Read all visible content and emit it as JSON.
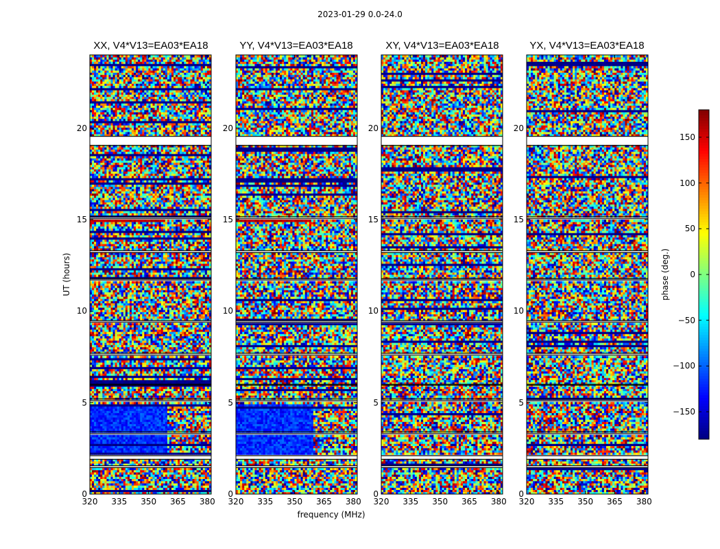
{
  "suptitle": "2023-01-29 0.0-24.0",
  "chart_data": {
    "type": "heatmap",
    "xlabel": "frequency (MHz)",
    "ylabel": "UT (hours)",
    "xlim": [
      320,
      382
    ],
    "ylim": [
      0,
      24
    ],
    "x_ticks": [
      "320",
      "335",
      "350",
      "365",
      "380"
    ],
    "y_ticks": [
      "0",
      "5",
      "10",
      "15",
      "20"
    ],
    "panels": [
      {
        "title": "XX, V4*V13=EA03*EA18",
        "polarization": "XX",
        "low_band_phase_deg": -120,
        "low_band_ut": [
          2.1,
          4.9
        ],
        "low_band_freq_max": 360,
        "band_15h_phase_deg": 160
      },
      {
        "title": "YY, V4*V13=EA03*EA18",
        "polarization": "YY",
        "low_band_phase_deg": -120,
        "low_band_ut": [
          2.1,
          4.9
        ],
        "low_band_freq_max": 360,
        "band_15h_phase_deg": 160
      },
      {
        "title": "XY, V4*V13=EA03*EA18",
        "polarization": "XY",
        "low_band_phase_deg": null,
        "low_band_ut": null,
        "low_band_freq_max": null,
        "band_15h_phase_deg": null
      },
      {
        "title": "YX, V4*V13=EA03*EA18",
        "polarization": "YX",
        "low_band_phase_deg": null,
        "low_band_ut": null,
        "low_band_freq_max": null,
        "band_15h_phase_deg": null
      }
    ],
    "flagged_ut_ranges": [
      [
        19.05,
        19.55
      ],
      [
        15.05,
        15.15
      ],
      [
        13.2,
        13.3
      ],
      [
        11.7,
        11.78
      ],
      [
        9.4,
        9.48
      ],
      [
        7.6,
        7.7
      ],
      [
        5.95,
        6.0
      ],
      [
        5.1,
        5.2
      ],
      [
        3.3,
        3.4
      ],
      [
        1.9,
        2.1
      ],
      [
        1.45,
        1.55
      ]
    ],
    "colorbar": {
      "label": "phase (deg.)",
      "range": [
        -180,
        180
      ],
      "ticks": [
        "150",
        "100",
        "50",
        "0",
        "−50",
        "−100",
        "−150"
      ],
      "tick_values": [
        150,
        100,
        50,
        0,
        -50,
        -100,
        -150
      ],
      "colormap": "jet"
    }
  }
}
